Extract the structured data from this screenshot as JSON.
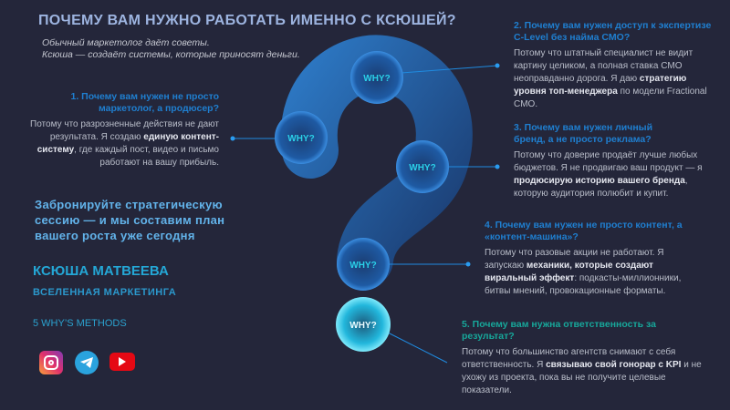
{
  "header": {
    "title": "ПОЧЕМУ ВАМ НУЖНО РАБОТАТЬ ИМЕННО С КСЮШЕЙ?",
    "subtitle_line1": "Обычный маркетолог даёт советы.",
    "subtitle_line2": "Ксюша — создаёт системы, которые приносят деньги."
  },
  "why_label": "WHY?",
  "items": [
    {
      "question": "1. Почему вам нужен не просто маркетолог, а продюсер?",
      "a1": "Потому что разрозненные действия не дают результата. Я создаю ",
      "b1": "единую контент-систему",
      "a2": ",  где каждый пост, видео и письмо работают на вашу прибыль."
    },
    {
      "question": "2. Почему вам нужен доступ к экспертизе C-Level без найма CMO?",
      "a1": "Потому что штатный  специалист не видит картину целиком, а полная ставка CMO неоправданно дорога. Я даю ",
      "b1": "стратегию уровня топ-менеджера",
      "a2": " по модели Fractional CMO."
    },
    {
      "question": "3. Почему вам нужен личный бренд, а не просто реклама?",
      "a1": "Потому что доверие продаёт лучше любых бюджетов. Я не продвигаю ваш продукт — я ",
      "b1": "продюсирую историю вашего бренда",
      "a2": ", которую аудитория полюбит и купит."
    },
    {
      "question": "4. Почему вам нужен не просто контент, а «контент-машина»?",
      "a1": "Потому что разовые акции не работают. Я запускаю ",
      "b1": "механики, которые создают виральный эффект",
      "a2": ": подкасты-миллионники, битвы мнений, провокационные форматы."
    },
    {
      "question": "5. Почему вам нужна ответственность за результат?",
      "a1": "Потому что большинство агентств снимают с себя ответственность. Я ",
      "b1": "связываю свой гонорар с KPI",
      "a2": " и не ухожу из проекта, пока вы не получите целевые показатели."
    }
  ],
  "cta": "Забронируйте стратегическую сессию — и мы составим план вашего роста уже сегодня",
  "author": {
    "name": "КСЮША МАТВЕЕВА",
    "brand": "ВСЕЛЕННАЯ МАРКЕТИНГА",
    "methods": "5 WHY’S METHODS"
  },
  "social": [
    "instagram-icon",
    "telegram-icon",
    "youtube-icon"
  ],
  "colors": {
    "background": "#24263a",
    "accent": "#1f7fd0",
    "highlight": "#2ad0e8",
    "item5": "#17a79a"
  }
}
